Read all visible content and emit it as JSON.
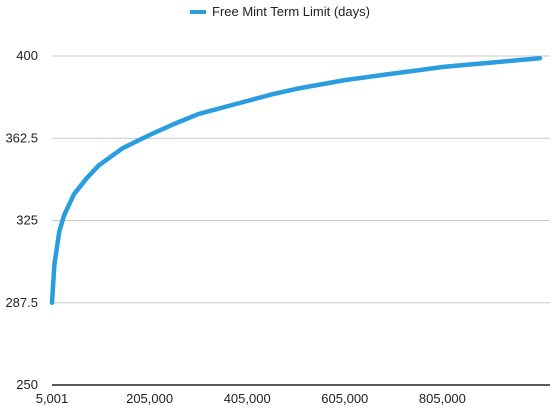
{
  "chart_data": {
    "type": "line",
    "title": "",
    "xlabel": "",
    "ylabel": "",
    "xlim": [
      5001,
      1005000
    ],
    "ylim": [
      250,
      400
    ],
    "x_ticks": [
      5001,
      205000,
      405000,
      605000,
      805000
    ],
    "x_tick_labels": [
      "5,001",
      "205,000",
      "405,000",
      "605,000",
      "805,000"
    ],
    "y_ticks": [
      250,
      287.5,
      325,
      362.5,
      400
    ],
    "y_tick_labels": [
      "250",
      "287.5",
      "325",
      "362.5",
      "400"
    ],
    "grid": true,
    "legend": "top-center",
    "series": [
      {
        "name": "Free Mint Term Limit (days)",
        "color": "#2a9ce0",
        "x": [
          5001,
          10000,
          20000,
          30000,
          50000,
          75000,
          100000,
          150000,
          205000,
          255000,
          305000,
          355000,
          405000,
          455000,
          505000,
          555000,
          605000,
          655000,
          705000,
          755000,
          805000,
          855000,
          905000,
          955000,
          1005000
        ],
        "y": [
          287.5,
          305,
          320,
          327.5,
          337,
          344,
          350,
          358,
          364,
          369,
          373.5,
          376.5,
          379.5,
          382.5,
          385,
          387,
          389,
          390.5,
          392,
          393.5,
          395,
          396,
          397,
          398,
          399
        ]
      }
    ]
  }
}
